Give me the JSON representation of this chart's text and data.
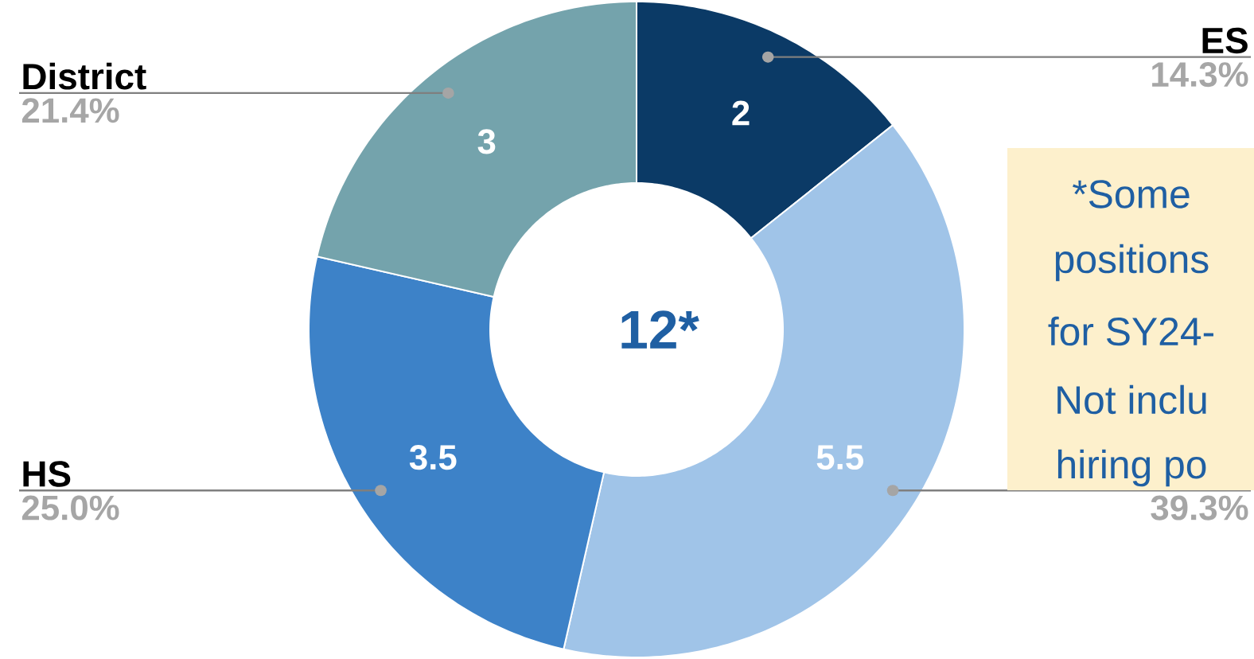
{
  "chart_data": {
    "type": "donut",
    "categories": [
      "ES",
      null,
      "HS",
      "District"
    ],
    "values": [
      2,
      5.5,
      3.5,
      3
    ],
    "colors": [
      "#0b3a66",
      "#a0c4e8",
      "#3d82c8",
      "#74a3ac"
    ],
    "data_labels": true,
    "annotations": [
      "14.3%",
      "39.3%",
      "25.0%",
      "21.4%",
      "12*",
      "*Some",
      "positions",
      "for SY24-",
      "Not inclu",
      "hiring po"
    ]
  }
}
